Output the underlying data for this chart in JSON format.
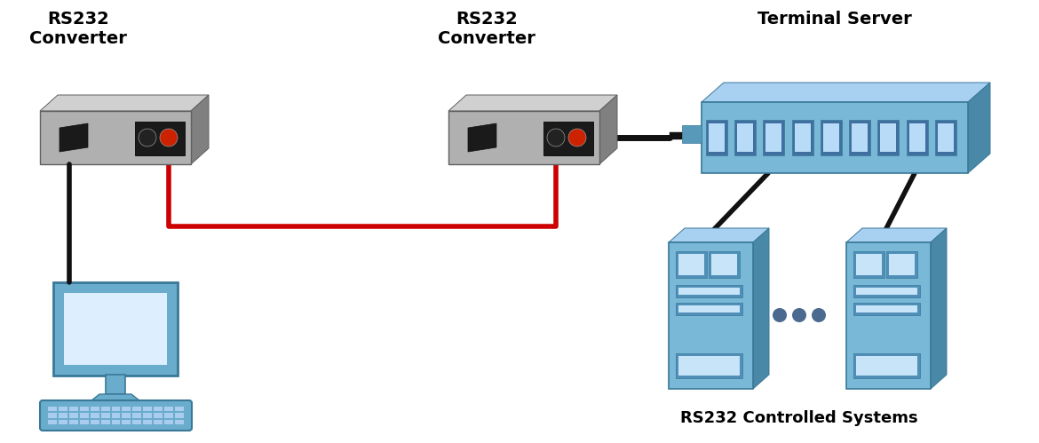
{
  "bg_color": "#ffffff",
  "label_conv1": "RS232\nConverter",
  "label_conv2": "RS232\nConverter",
  "label_term": "Terminal Server",
  "label_rs232": "RS232 Controlled Systems",
  "conv_face": "#b0b0b0",
  "conv_side": "#808080",
  "conv_top": "#d0d0d0",
  "conv_port_bg": "#1a1a1a",
  "conv_port_inner": "#333333",
  "conv_hdmi": "#1a1a1a",
  "term_face": "#7ab8d8",
  "term_side": "#4a88a8",
  "term_top": "#a8d0f0",
  "term_port_dark": "#4070a0",
  "term_port_light": "#b8dcf8",
  "pc_face": "#6aaccc",
  "pc_screen": "#ddeeff",
  "server_face": "#7ab8d8",
  "server_side": "#4a88a8",
  "server_top": "#a8d0f0",
  "server_slot_dark": "#5090b8",
  "server_slot_light": "#c8e4f8",
  "wire_black": "#111111",
  "wire_red": "#cc0000",
  "text_black": "#000000",
  "dot_color": "#4a6a90"
}
